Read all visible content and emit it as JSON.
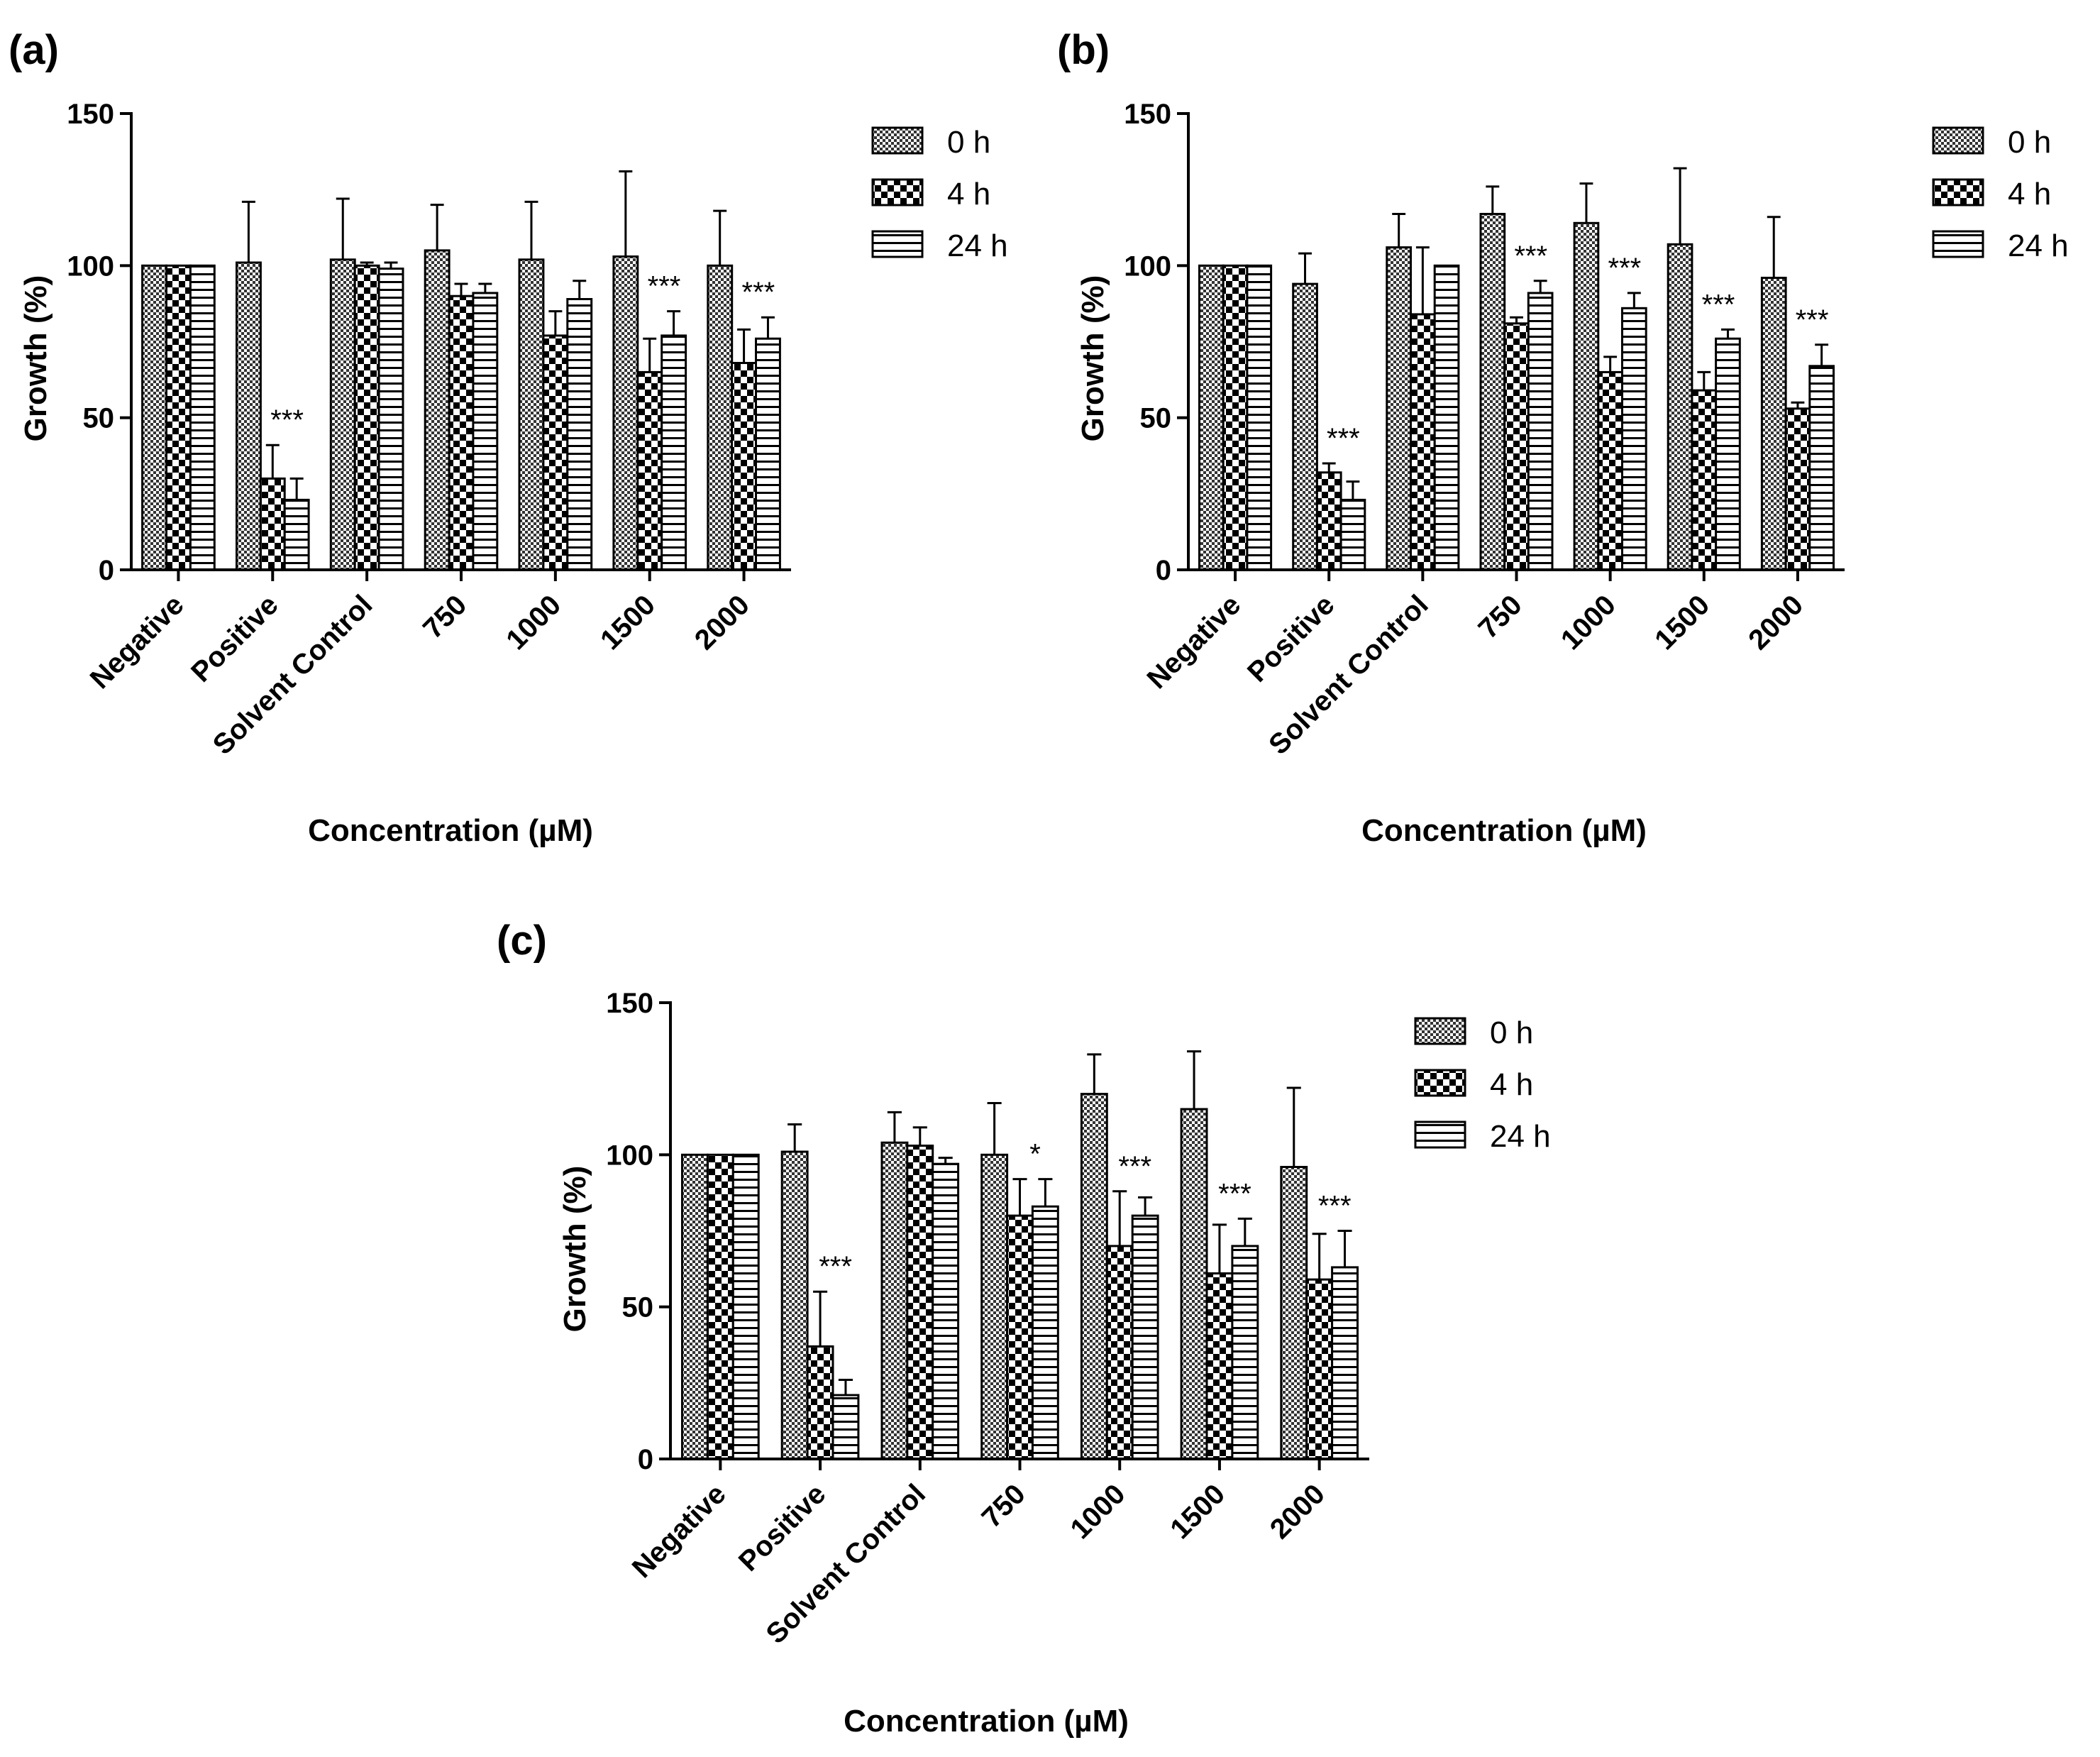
{
  "figure": {
    "series_names": [
      "0 h",
      "4 h",
      "24 h"
    ],
    "colors": {
      "stroke": "#000000",
      "background": "#ffffff"
    }
  },
  "chart_data": [
    {
      "panel": "(a)",
      "type": "bar",
      "xlabel": "Concentration (µM)",
      "ylabel": "Growth (%)",
      "ylim": [
        0,
        150
      ],
      "yticks": [
        "0",
        "50",
        "100",
        "150"
      ],
      "categories": [
        "Negative",
        "Positive",
        "Solvent Control",
        "750",
        "1000",
        "1500",
        "2000"
      ],
      "legend": [
        "0 h",
        "4 h",
        "24 h"
      ],
      "series": [
        {
          "name": "0 h",
          "values": [
            100,
            101,
            102,
            105,
            102,
            103,
            100
          ],
          "errors": [
            0,
            20,
            20,
            15,
            19,
            28,
            18
          ]
        },
        {
          "name": "4 h",
          "values": [
            100,
            30,
            100,
            90,
            77,
            65,
            68
          ],
          "errors": [
            0,
            11,
            1,
            4,
            8,
            11,
            11
          ]
        },
        {
          "name": "24 h",
          "values": [
            100,
            23,
            99,
            91,
            89,
            77,
            76
          ],
          "errors": [
            0,
            7,
            2,
            3,
            6,
            8,
            7
          ]
        }
      ],
      "annotations": [
        {
          "category_index": 1,
          "text": "***"
        },
        {
          "category_index": 5,
          "text": "***"
        },
        {
          "category_index": 6,
          "text": "***"
        }
      ]
    },
    {
      "panel": "(b)",
      "type": "bar",
      "xlabel": "Concentration (µM)",
      "ylabel": "Growth (%)",
      "ylim": [
        0,
        150
      ],
      "yticks": [
        "0",
        "50",
        "100",
        "150"
      ],
      "categories": [
        "Negative",
        "Positive",
        "Solvent Control",
        "750",
        "1000",
        "1500",
        "2000"
      ],
      "legend": [
        "0 h",
        "4 h",
        "24 h"
      ],
      "series": [
        {
          "name": "0 h",
          "values": [
            100,
            94,
            106,
            117,
            114,
            107,
            96
          ],
          "errors": [
            0,
            10,
            11,
            9,
            13,
            25,
            20
          ]
        },
        {
          "name": "4 h",
          "values": [
            100,
            32,
            84,
            81,
            65,
            59,
            53
          ],
          "errors": [
            0,
            3,
            22,
            2,
            5,
            6,
            2
          ]
        },
        {
          "name": "24 h",
          "values": [
            100,
            23,
            100,
            91,
            86,
            76,
            67
          ],
          "errors": [
            0,
            6,
            0,
            4,
            5,
            3,
            7
          ]
        }
      ],
      "annotations": [
        {
          "category_index": 1,
          "text": "***"
        },
        {
          "category_index": 3,
          "text": "***"
        },
        {
          "category_index": 4,
          "text": "***"
        },
        {
          "category_index": 5,
          "text": "***"
        },
        {
          "category_index": 6,
          "text": "***"
        }
      ]
    },
    {
      "panel": "(c)",
      "type": "bar",
      "xlabel": "Concentration (µM)",
      "ylabel": "Growth (%)",
      "ylim": [
        0,
        150
      ],
      "yticks": [
        "0",
        "50",
        "100",
        "150"
      ],
      "categories": [
        "Negative",
        "Positive",
        "Solvent Control",
        "750",
        "1000",
        "1500",
        "2000"
      ],
      "legend": [
        "0 h",
        "4 h",
        "24 h"
      ],
      "series": [
        {
          "name": "0 h",
          "values": [
            100,
            101,
            104,
            100,
            120,
            115,
            96
          ],
          "errors": [
            0,
            9,
            10,
            17,
            13,
            19,
            26
          ]
        },
        {
          "name": "4 h",
          "values": [
            100,
            37,
            103,
            80,
            70,
            61,
            59
          ],
          "errors": [
            0,
            18,
            6,
            12,
            18,
            16,
            15
          ]
        },
        {
          "name": "24 h",
          "values": [
            100,
            21,
            97,
            83,
            80,
            70,
            63
          ],
          "errors": [
            0,
            5,
            2,
            9,
            6,
            9,
            12
          ]
        }
      ],
      "annotations": [
        {
          "category_index": 1,
          "text": "***"
        },
        {
          "category_index": 3,
          "text": "*"
        },
        {
          "category_index": 4,
          "text": "***"
        },
        {
          "category_index": 5,
          "text": "***"
        },
        {
          "category_index": 6,
          "text": "***"
        }
      ]
    }
  ]
}
